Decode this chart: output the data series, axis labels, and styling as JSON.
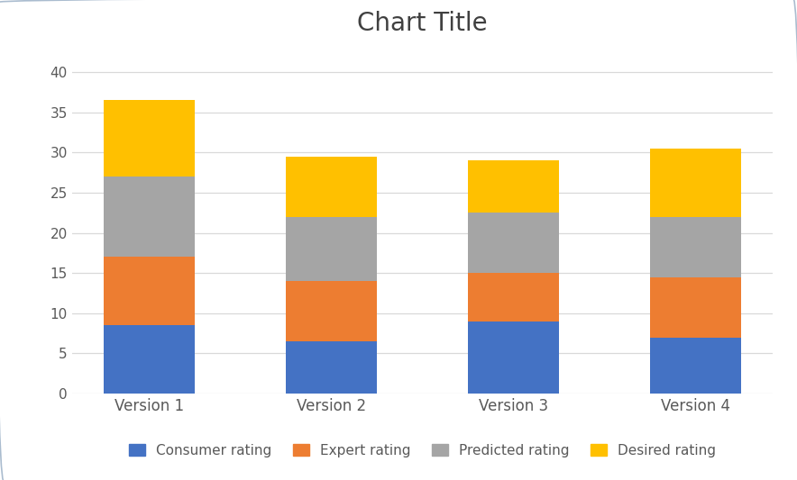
{
  "categories": [
    "Version 1",
    "Version 2",
    "Version 3",
    "Version 4"
  ],
  "consumer_rating": [
    8.5,
    6.5,
    9.0,
    7.0
  ],
  "expert_rating": [
    8.5,
    7.5,
    6.0,
    7.5
  ],
  "predicted_rating": [
    10.0,
    8.0,
    7.5,
    7.5
  ],
  "desired_rating": [
    9.5,
    7.5,
    6.5,
    8.5
  ],
  "colors": {
    "consumer": "#4472C4",
    "expert": "#ED7D31",
    "predicted": "#A5A5A5",
    "desired": "#FFC000"
  },
  "title": "Chart Title",
  "title_fontsize": 20,
  "title_color": "#404040",
  "ylim": [
    0,
    43
  ],
  "yticks": [
    0,
    5,
    10,
    15,
    20,
    25,
    30,
    35,
    40
  ],
  "legend_labels": [
    "Consumer rating",
    "Expert rating",
    "Predicted rating",
    "Desired rating"
  ],
  "background_color": "#FFFFFF",
  "grid_color": "#D9D9D9",
  "bar_width": 0.5,
  "frame_color": "#B0C4DE",
  "tick_color": "#595959"
}
